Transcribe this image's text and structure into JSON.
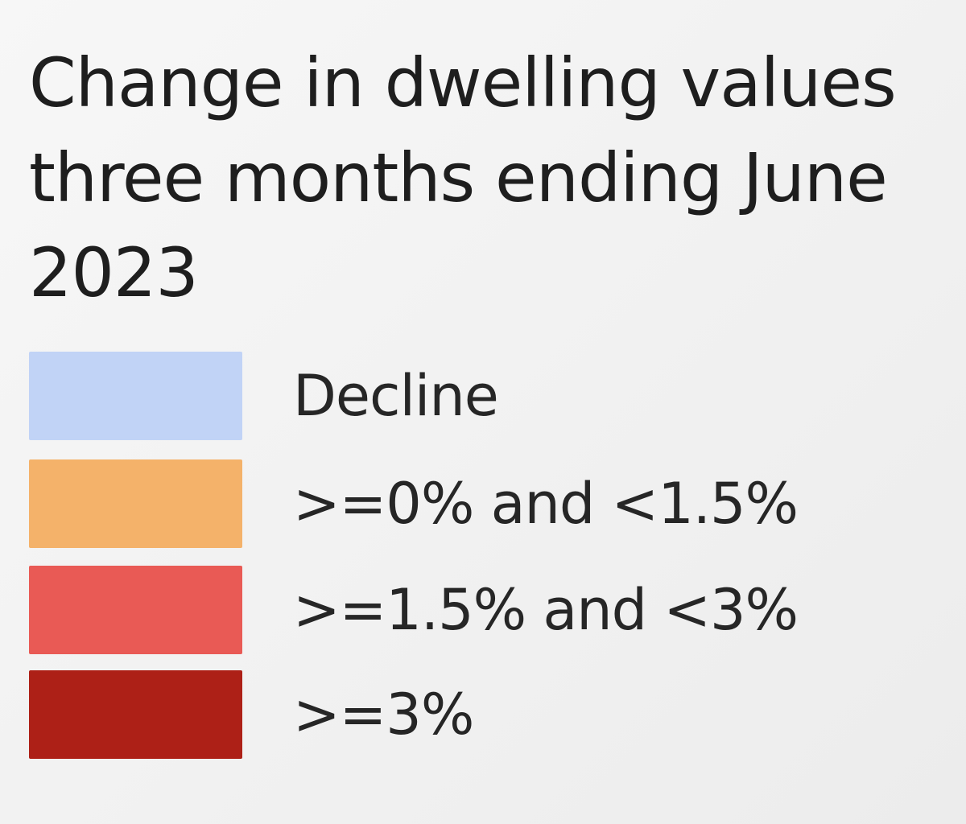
{
  "legend": {
    "title": "Change in dwelling values three months ending June 2023",
    "items": [
      {
        "label": "Decline",
        "color": "#c1d3f6"
      },
      {
        "label": ">=0% and <1.5%",
        "color": "#f4b26a"
      },
      {
        "label": ">=1.5% and <3%",
        "color": "#e95a55"
      },
      {
        "label": ">=3%",
        "color": "#ad2017"
      }
    ]
  }
}
